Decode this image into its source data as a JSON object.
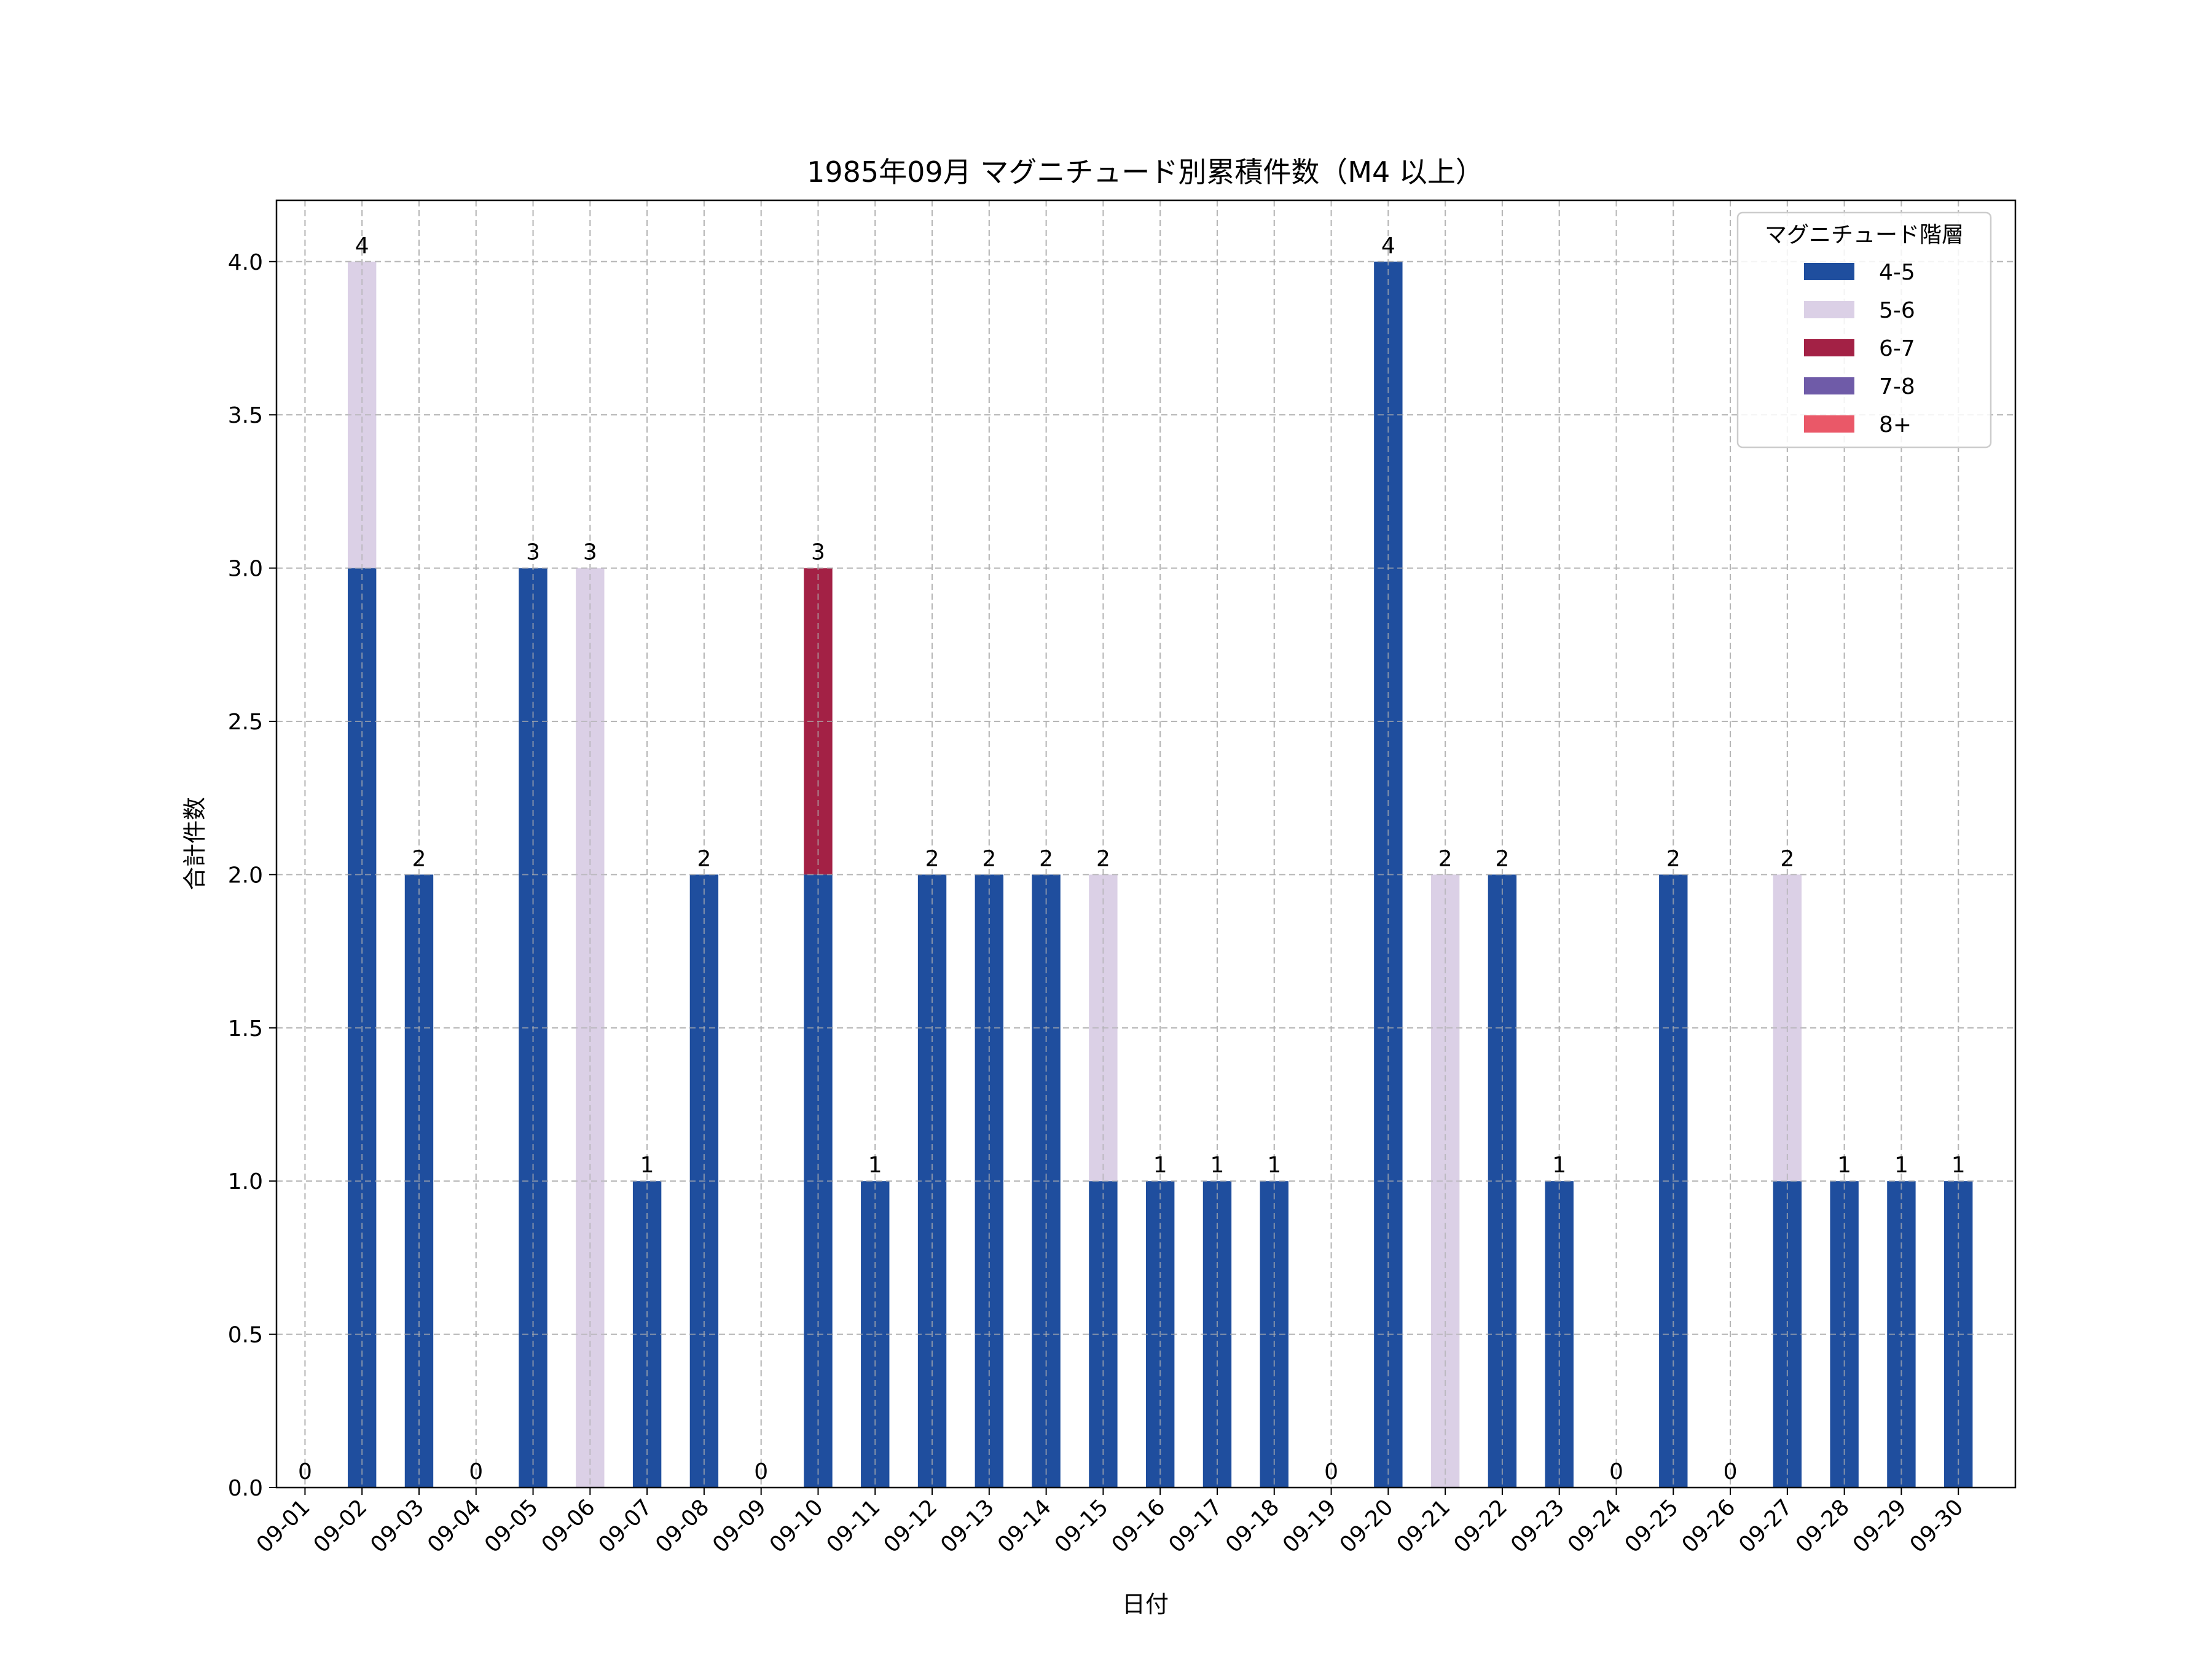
{
  "chart_data": {
    "type": "bar",
    "stacked": true,
    "title": "1985年09月 マグニチュード別累積件数（M4 以上）",
    "xlabel": "日付",
    "ylabel": "合計件数",
    "ylim": [
      0,
      4.2
    ],
    "yticks": [
      "0.0",
      "0.5",
      "1.0",
      "1.5",
      "2.0",
      "2.5",
      "3.0",
      "3.5",
      "4.0"
    ],
    "grid": true,
    "legend_title": "マグニチュード階層",
    "legend_position": "top-right",
    "categories": [
      "09-01",
      "09-02",
      "09-03",
      "09-04",
      "09-05",
      "09-06",
      "09-07",
      "09-08",
      "09-09",
      "09-10",
      "09-11",
      "09-12",
      "09-13",
      "09-14",
      "09-15",
      "09-16",
      "09-17",
      "09-18",
      "09-19",
      "09-20",
      "09-21",
      "09-22",
      "09-23",
      "09-24",
      "09-25",
      "09-26",
      "09-27",
      "09-28",
      "09-29",
      "09-30"
    ],
    "series": [
      {
        "name": "4-5",
        "color": "#1f4e9e",
        "values": [
          0,
          3,
          2,
          0,
          3,
          0,
          1,
          2,
          0,
          2,
          1,
          2,
          2,
          2,
          1,
          1,
          1,
          1,
          0,
          4,
          0,
          2,
          1,
          0,
          2,
          0,
          1,
          1,
          1,
          1
        ]
      },
      {
        "name": "5-6",
        "color": "#dbd0e6",
        "values": [
          0,
          1,
          0,
          0,
          0,
          3,
          0,
          0,
          0,
          0,
          0,
          0,
          0,
          0,
          1,
          0,
          0,
          0,
          0,
          0,
          2,
          0,
          0,
          0,
          0,
          0,
          1,
          0,
          0,
          0
        ]
      },
      {
        "name": "6-7",
        "color": "#a32145",
        "values": [
          0,
          0,
          0,
          0,
          0,
          0,
          0,
          0,
          0,
          1,
          0,
          0,
          0,
          0,
          0,
          0,
          0,
          0,
          0,
          0,
          0,
          0,
          0,
          0,
          0,
          0,
          0,
          0,
          0,
          0
        ]
      },
      {
        "name": "7-8",
        "color": "#6f5ba8",
        "values": [
          0,
          0,
          0,
          0,
          0,
          0,
          0,
          0,
          0,
          0,
          0,
          0,
          0,
          0,
          0,
          0,
          0,
          0,
          0,
          0,
          0,
          0,
          0,
          0,
          0,
          0,
          0,
          0,
          0,
          0
        ]
      },
      {
        "name": "8+",
        "color": "#ea5868",
        "values": [
          0,
          0,
          0,
          0,
          0,
          0,
          0,
          0,
          0,
          0,
          0,
          0,
          0,
          0,
          0,
          0,
          0,
          0,
          0,
          0,
          0,
          0,
          0,
          0,
          0,
          0,
          0,
          0,
          0,
          0
        ]
      }
    ],
    "totals": [
      0,
      4,
      2,
      0,
      3,
      3,
      1,
      2,
      0,
      3,
      1,
      2,
      2,
      2,
      2,
      1,
      1,
      1,
      0,
      4,
      2,
      2,
      1,
      0,
      2,
      0,
      2,
      1,
      1,
      1
    ]
  }
}
